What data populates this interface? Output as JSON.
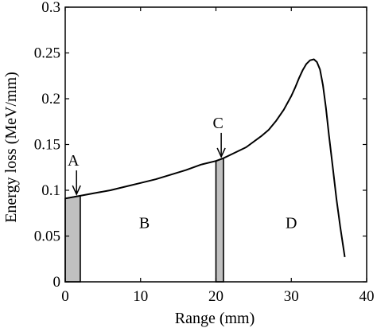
{
  "chart_data": {
    "type": "line",
    "title": "",
    "xlabel": "Range (mm)",
    "ylabel": "Energy loss (MeV/mm)",
    "xlim": [
      0,
      40
    ],
    "ylim": [
      0,
      0.3
    ],
    "xticks": [
      "0",
      "10",
      "20",
      "30",
      "40"
    ],
    "yticks": [
      "0",
      "0.05",
      "0.1",
      "0.15",
      "0.2",
      "0.25",
      "0.3"
    ],
    "grid": false,
    "legend": "none",
    "series": [
      {
        "x": [
          0,
          2,
          4,
          6,
          8,
          10,
          12,
          14,
          16,
          18,
          20,
          21,
          22,
          24,
          26,
          27,
          28,
          29,
          30,
          30.5,
          31,
          31.5,
          32,
          32.5,
          33,
          33.4,
          33.8,
          34.2,
          34.6,
          35,
          35.5,
          36,
          36.5,
          37.1
        ],
        "y": [
          0.091,
          0.094,
          0.097,
          0.1,
          0.104,
          0.108,
          0.112,
          0.117,
          0.122,
          0.128,
          0.132,
          0.135,
          0.139,
          0.147,
          0.159,
          0.166,
          0.176,
          0.188,
          0.203,
          0.212,
          0.222,
          0.231,
          0.238,
          0.242,
          0.243,
          0.24,
          0.232,
          0.215,
          0.19,
          0.16,
          0.125,
          0.09,
          0.06,
          0.027
        ],
        "color": "#000000"
      }
    ],
    "shaded_regions": [
      {
        "x0": 0,
        "x1": 2,
        "color": "#c0c0c0"
      },
      {
        "x0": 20,
        "x1": 21,
        "color": "#c0c0c0"
      }
    ],
    "region_labels": [
      {
        "text": "B",
        "x": 10.5,
        "y": 0.065
      },
      {
        "text": "D",
        "x": 30,
        "y": 0.065
      }
    ],
    "annotations": [
      {
        "text": "A",
        "x": 1.5,
        "y": 0.093
      },
      {
        "text": "C",
        "x": 20.7,
        "y": 0.134
      }
    ]
  }
}
